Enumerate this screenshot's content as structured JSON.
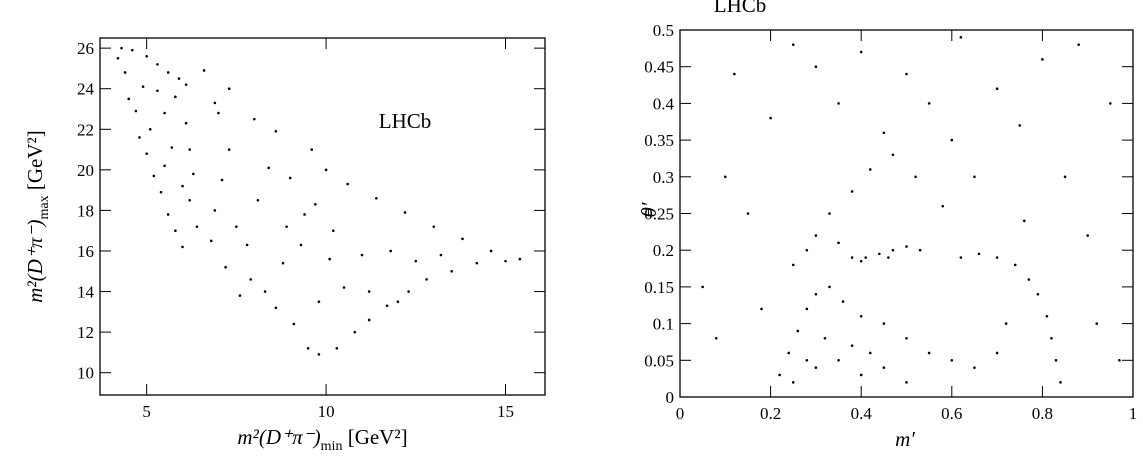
{
  "chart_data": [
    {
      "type": "scatter",
      "annotation": "LHCb",
      "x_label": {
        "main": "m²(D⁺π⁻)",
        "sub": "min",
        "unit": " [GeV²]"
      },
      "y_label": {
        "main": "m²(D⁺π⁻)",
        "sub": "max",
        "unit": " [GeV²]"
      },
      "xlim": [
        3.7,
        16.1
      ],
      "ylim": [
        8.9,
        26.5
      ],
      "xticks": [
        5,
        10,
        15
      ],
      "yticks": [
        10,
        12,
        14,
        16,
        18,
        20,
        22,
        24,
        26
      ],
      "color": "#000000",
      "x": [
        4.2,
        4.4,
        4.5,
        4.7,
        4.8,
        5.0,
        5.2,
        5.4,
        5.6,
        5.8,
        6.0,
        4.3,
        4.6,
        5.0,
        5.3,
        5.6,
        5.9,
        6.1,
        5.8,
        5.5,
        5.3,
        5.1,
        4.9,
        5.7,
        6.1,
        6.2,
        6.3,
        6.2,
        6.0,
        5.5,
        6.4,
        6.8,
        6.9,
        7.1,
        7.3,
        7.0,
        7.5,
        7.2,
        7.8,
        8.1,
        8.4,
        8.6,
        8.0,
        9.0,
        9.4,
        8.8,
        8.3,
        8.6,
        9.1,
        9.5,
        9.8,
        10.3,
        10.8,
        11.2,
        11.7,
        12.3,
        12.8,
        13.5,
        14.2,
        15.0,
        15.4,
        14.6,
        13.8,
        13.0,
        12.2,
        11.4,
        10.6,
        10.0,
        9.6,
        10.2,
        11.0,
        11.8,
        12.5,
        10.5,
        9.8,
        10.1,
        9.3,
        11.2,
        12.0,
        13.2,
        7.6,
        7.9,
        7.3,
        6.6,
        6.9,
        8.9,
        9.7
      ],
      "values": [
        25.5,
        24.8,
        23.5,
        22.9,
        21.6,
        20.8,
        19.7,
        18.9,
        17.8,
        17.0,
        16.2,
        26.0,
        25.9,
        25.6,
        25.2,
        24.8,
        24.5,
        24.2,
        23.6,
        22.8,
        23.9,
        22.0,
        24.1,
        21.1,
        22.3,
        21.0,
        19.8,
        18.5,
        19.2,
        20.2,
        17.2,
        16.5,
        18.0,
        19.5,
        21.0,
        22.8,
        17.2,
        15.2,
        16.3,
        18.5,
        20.1,
        21.9,
        22.5,
        19.6,
        17.8,
        15.4,
        14.0,
        13.2,
        12.4,
        11.2,
        10.9,
        11.2,
        12.0,
        12.6,
        13.3,
        14.0,
        14.6,
        15.0,
        15.4,
        15.5,
        15.6,
        16.0,
        16.6,
        17.2,
        17.9,
        18.6,
        19.3,
        20.0,
        21.0,
        17.0,
        15.8,
        16.0,
        15.5,
        14.2,
        13.5,
        15.6,
        16.3,
        14.0,
        13.5,
        15.8,
        13.8,
        14.6,
        24.0,
        24.9,
        23.3,
        17.2,
        18.3
      ]
    },
    {
      "type": "scatter",
      "title": "LHCb",
      "x_label": {
        "main": "m′"
      },
      "y_label": {
        "main": "θ′"
      },
      "xlim": [
        0,
        1
      ],
      "ylim": [
        0,
        0.5
      ],
      "xticks": [
        0,
        0.2,
        0.4,
        0.6,
        0.8,
        1
      ],
      "yticks": [
        0,
        0.05,
        0.1,
        0.15,
        0.2,
        0.25,
        0.3,
        0.35,
        0.4,
        0.45,
        0.5
      ],
      "color": "#000000",
      "x": [
        0.22,
        0.24,
        0.26,
        0.28,
        0.3,
        0.33,
        0.36,
        0.4,
        0.45,
        0.5,
        0.55,
        0.6,
        0.65,
        0.7,
        0.25,
        0.3,
        0.35,
        0.4,
        0.45,
        0.5,
        0.32,
        0.38,
        0.42,
        0.28,
        0.38,
        0.41,
        0.44,
        0.47,
        0.5,
        0.53,
        0.4,
        0.46,
        0.62,
        0.66,
        0.7,
        0.74,
        0.77,
        0.79,
        0.81,
        0.82,
        0.83,
        0.84,
        0.3,
        0.33,
        0.28,
        0.35,
        0.25,
        0.38,
        0.42,
        0.47,
        0.52,
        0.45,
        0.35,
        0.3,
        0.4,
        0.5,
        0.55,
        0.6,
        0.65,
        0.58,
        0.7,
        0.75,
        0.8,
        0.85,
        0.9,
        0.95,
        0.1,
        0.15,
        0.12,
        0.2,
        0.05,
        0.08,
        0.92,
        0.97,
        0.88,
        0.62,
        0.25,
        0.18,
        0.72,
        0.76
      ],
      "values": [
        0.03,
        0.06,
        0.09,
        0.12,
        0.14,
        0.15,
        0.13,
        0.11,
        0.1,
        0.08,
        0.06,
        0.05,
        0.04,
        0.06,
        0.02,
        0.04,
        0.05,
        0.03,
        0.04,
        0.02,
        0.08,
        0.07,
        0.06,
        0.05,
        0.19,
        0.19,
        0.195,
        0.2,
        0.205,
        0.2,
        0.185,
        0.19,
        0.19,
        0.195,
        0.19,
        0.18,
        0.16,
        0.14,
        0.11,
        0.08,
        0.05,
        0.02,
        0.22,
        0.25,
        0.2,
        0.21,
        0.18,
        0.28,
        0.31,
        0.33,
        0.3,
        0.36,
        0.4,
        0.45,
        0.47,
        0.44,
        0.4,
        0.35,
        0.3,
        0.26,
        0.42,
        0.37,
        0.46,
        0.3,
        0.22,
        0.4,
        0.3,
        0.25,
        0.44,
        0.38,
        0.15,
        0.08,
        0.1,
        0.05,
        0.48,
        0.49,
        0.48,
        0.12,
        0.1,
        0.24
      ]
    }
  ]
}
